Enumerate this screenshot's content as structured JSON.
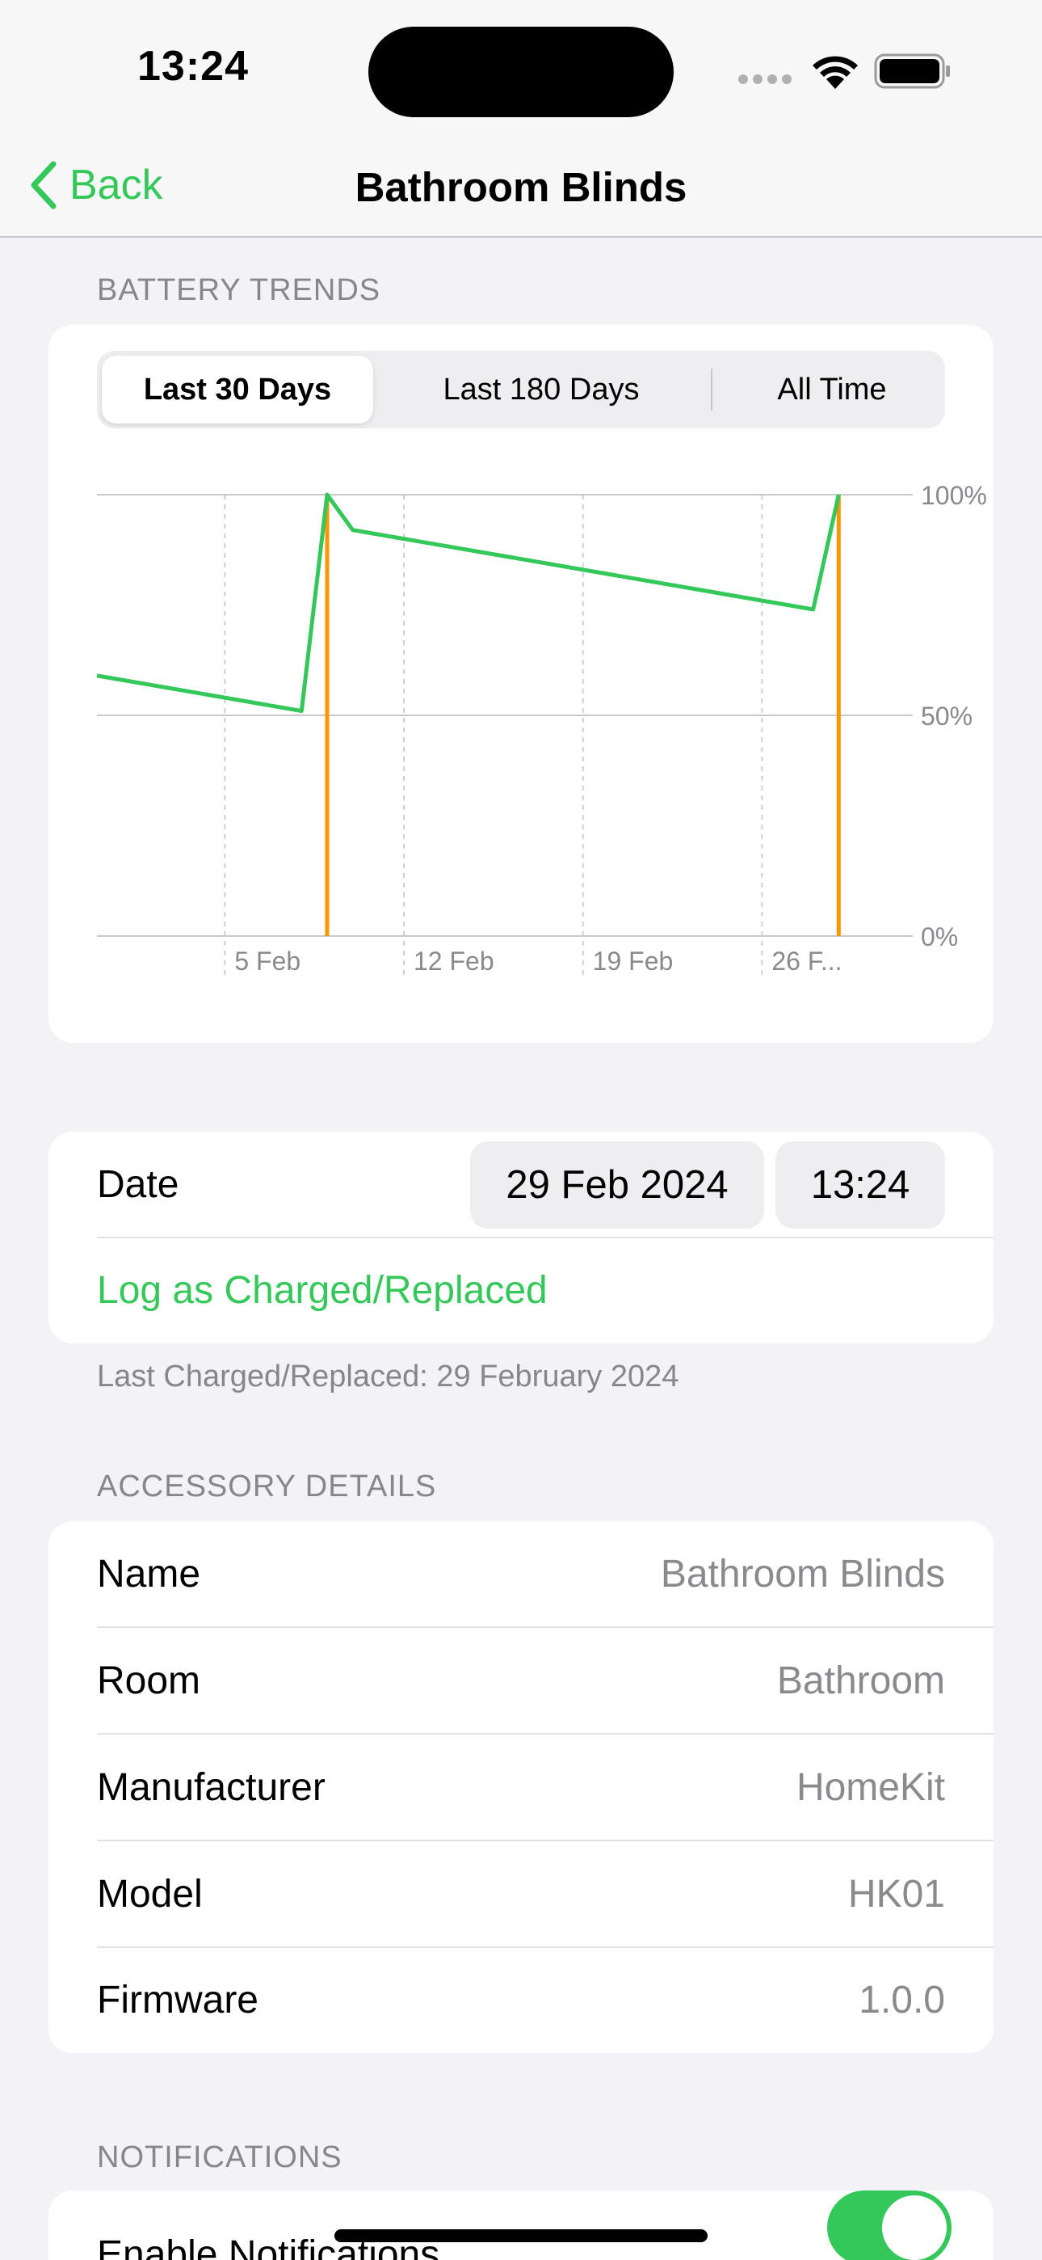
{
  "status_bar": {
    "time": "13:24"
  },
  "nav": {
    "back_label": "Back",
    "title": "Bathroom Blinds"
  },
  "battery_trends": {
    "section_title": "BATTERY TRENDS",
    "segments": [
      "Last 30 Days",
      "Last 180 Days",
      "All Time"
    ],
    "selected_segment": "Last 30 Days"
  },
  "chart_data": {
    "type": "line",
    "y_ticks": [
      "100%",
      "50%",
      "0%"
    ],
    "x_ticks": [
      "5 Feb",
      "12 Feb",
      "19 Feb",
      "26 F..."
    ],
    "ylim": [
      0,
      100
    ],
    "xlim": [
      "2024-01-31",
      "2024-03-01"
    ],
    "grid": true,
    "series": [
      {
        "color": "#34c759",
        "points": [
          {
            "x": "2024-01-31",
            "y": 59
          },
          {
            "x": "2024-02-08",
            "y": 51
          },
          {
            "x": "2024-02-09",
            "y": 100
          },
          {
            "x": "2024-02-10",
            "y": 92
          },
          {
            "x": "2024-02-28",
            "y": 74
          },
          {
            "x": "2024-02-29",
            "y": 100
          }
        ]
      }
    ],
    "charge_events": {
      "color": "#ff9500",
      "dates": [
        "2024-02-09",
        "2024-02-29"
      ]
    }
  },
  "log": {
    "date_label": "Date",
    "date_value": "29 Feb 2024",
    "time_value": "13:24",
    "action_label": "Log as Charged/Replaced",
    "footer": "Last Charged/Replaced: 29 February 2024"
  },
  "accessory": {
    "section_title": "ACCESSORY DETAILS",
    "rows": [
      {
        "label": "Name",
        "value": "Bathroom Blinds"
      },
      {
        "label": "Room",
        "value": "Bathroom"
      },
      {
        "label": "Manufacturer",
        "value": "HomeKit"
      },
      {
        "label": "Model",
        "value": "HK01"
      },
      {
        "label": "Firmware",
        "value": "1.0.0"
      }
    ]
  },
  "notifications": {
    "section_title": "NOTIFICATIONS",
    "enable_label": "Enable Notifications",
    "enabled": true
  },
  "colors": {
    "accent": "#34c759",
    "charge_marker": "#ff9500"
  }
}
